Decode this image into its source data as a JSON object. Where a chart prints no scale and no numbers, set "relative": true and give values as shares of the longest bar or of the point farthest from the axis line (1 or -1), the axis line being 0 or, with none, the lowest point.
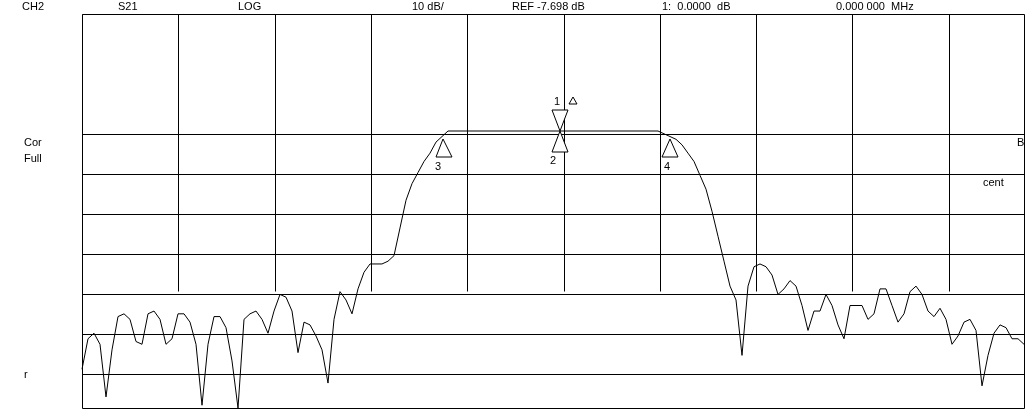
{
  "chart_data": {
    "type": "line",
    "relative": true,
    "grid": true,
    "color": "#000000",
    "annotations": [
      "CH2",
      "S21",
      "LOG",
      "10 dB/",
      "REF -7.698 dB",
      "1:  0.0000  dB",
      "0.000 000  MHz",
      "Cor",
      "Full",
      "r",
      "B",
      "cent",
      "1",
      "2",
      "3",
      "4"
    ],
    "categories": [
      null,
      null,
      null,
      null,
      null,
      null,
      null,
      null,
      null,
      null,
      null,
      null,
      null,
      null,
      null,
      null,
      null,
      null,
      null,
      null,
      null,
      null,
      null,
      null,
      null,
      null,
      null,
      null,
      null,
      null,
      null,
      null,
      null,
      null,
      null,
      null,
      null,
      null,
      null,
      null,
      null,
      null,
      null,
      null,
      null,
      null,
      null,
      null,
      null,
      null,
      null,
      null,
      null,
      null,
      null,
      null,
      null,
      null,
      null,
      null,
      null,
      null,
      null,
      null,
      null,
      null,
      null,
      null,
      null,
      null,
      null,
      null,
      null,
      null,
      null,
      null,
      null,
      null,
      null,
      null,
      null,
      null,
      null,
      null,
      null,
      null,
      null,
      null,
      null,
      null,
      null,
      null,
      null,
      null,
      null,
      null,
      null,
      null,
      null,
      null,
      null,
      null,
      null,
      null,
      null,
      null,
      null,
      null,
      null,
      null,
      null,
      null,
      null,
      null,
      null,
      null,
      null,
      null,
      null,
      null,
      null,
      null,
      null,
      null,
      null,
      null,
      null,
      null,
      null,
      null,
      null,
      null,
      null,
      null,
      null,
      null,
      null,
      null,
      null,
      null,
      null,
      null,
      null,
      null,
      null,
      null,
      null,
      null,
      null,
      null,
      null,
      null,
      null,
      null,
      null,
      null,
      null,
      null
    ],
    "values": [
      0.14,
      0.25,
      0.27,
      0.23,
      0.04,
      0.21,
      0.33,
      0.34,
      0.32,
      0.24,
      0.23,
      0.34,
      0.35,
      0.32,
      0.23,
      0.25,
      0.34,
      0.34,
      0.31,
      0.23,
      0.01,
      0.23,
      0.33,
      0.33,
      0.29,
      0.17,
      0,
      0.32,
      0.34,
      0.35,
      0.32,
      0.27,
      0.35,
      0.41,
      0.4,
      0.35,
      0.2,
      0.31,
      0.3,
      0.26,
      0.21,
      0.09,
      0.32,
      0.42,
      0.39,
      0.34,
      0.43,
      0.49,
      0.52,
      0.52,
      0.52,
      0.53,
      0.55,
      0.65,
      0.75,
      0.81,
      0.85,
      0.89,
      0.92,
      0.96,
      0.98,
      1,
      1,
      1,
      1,
      1,
      1,
      1,
      1,
      1,
      1,
      1,
      1,
      1,
      1,
      1,
      1,
      1,
      1,
      1,
      1,
      1,
      1,
      1,
      1,
      1,
      1,
      1,
      1,
      1,
      1,
      1,
      1,
      1,
      1,
      1,
      1,
      0.99,
      0.98,
      0.97,
      0.95,
      0.92,
      0.89,
      0.84,
      0.79,
      0.71,
      0.62,
      0.53,
      0.44,
      0.39,
      0.19,
      0.44,
      0.51,
      0.52,
      0.51,
      0.48,
      0.41,
      0.43,
      0.46,
      0.44,
      0.37,
      0.28,
      0.35,
      0.35,
      0.41,
      0.37,
      0.3,
      0.25,
      0.37,
      0.37,
      0.37,
      0.32,
      0.34,
      0.43,
      0.43,
      0.37,
      0.31,
      0.34,
      0.42,
      0.44,
      0.41,
      0.35,
      0.33,
      0.36,
      0.32,
      0.23,
      0.26,
      0.31,
      0.32,
      0.28,
      0.08,
      0.19,
      0.27,
      0.3,
      0.29,
      0.25,
      0.25,
      0.23
    ]
  }
}
